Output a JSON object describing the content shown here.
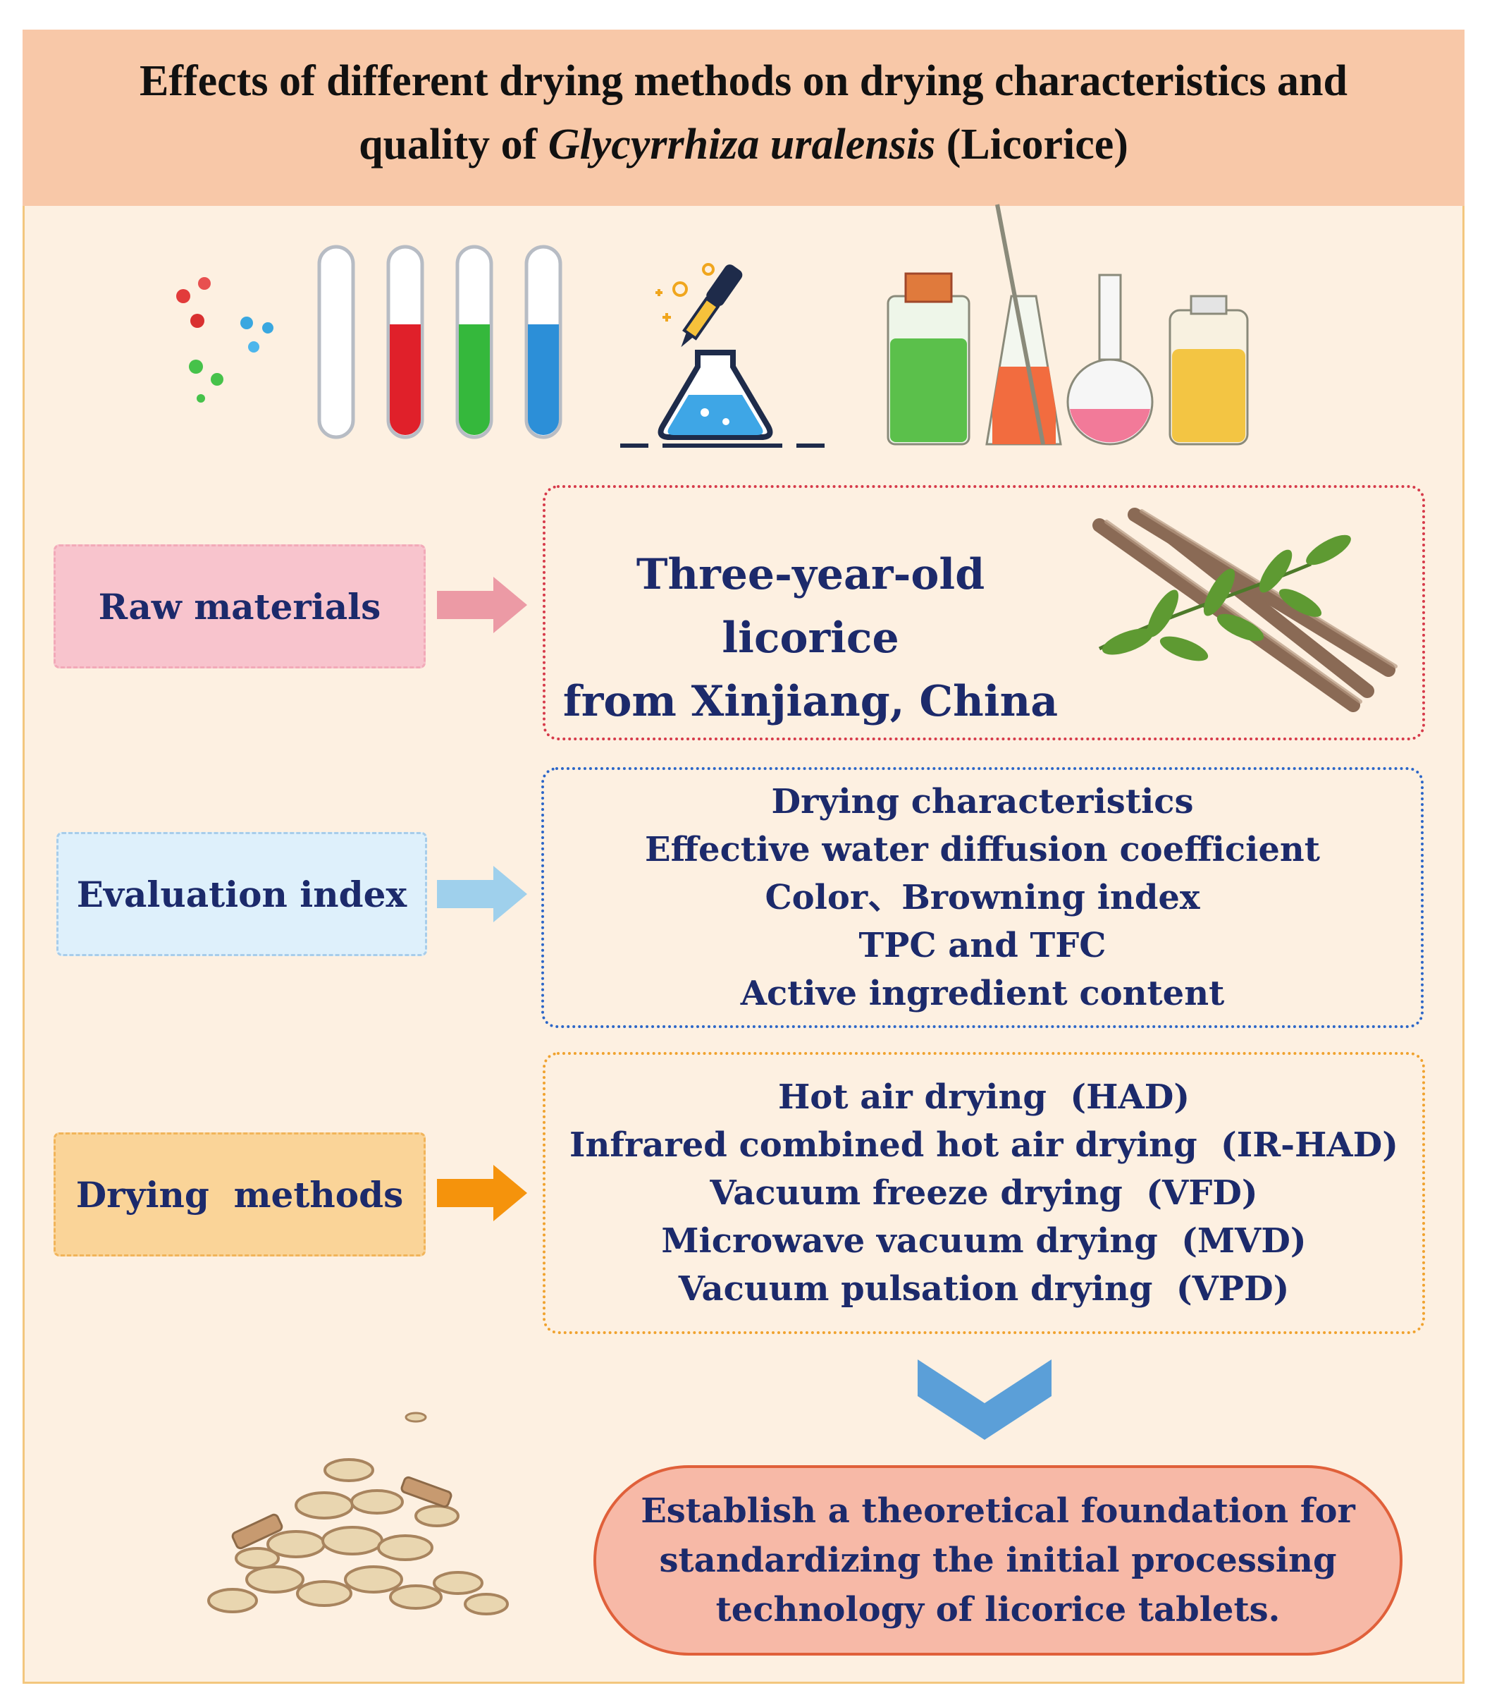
{
  "header": {
    "title_line1": "Effects of different drying methods on drying characteristics and",
    "title_line2_prefix": "quality of ",
    "title_line2_italic": "Glycyrrhiza uralensis",
    "title_line2_suffix": " (Licorice)"
  },
  "rows": {
    "raw": {
      "label": "Raw materials",
      "content_line1": "Three-year-old licorice",
      "content_line2": "from Xinjiang, China"
    },
    "evaluation": {
      "label": "Evaluation index",
      "items": [
        "Drying characteristics",
        "Effective water diffusion coefficient",
        "Color、Browning index",
        "TPC and TFC",
        "Active ingredient content"
      ]
    },
    "drying": {
      "label": "Drying  methods",
      "items": [
        "Hot air drying  (HAD)",
        "Infrared combined hot air drying  (IR-HAD)",
        "Vacuum freeze drying  (VFD)",
        "Microwave vacuum drying  (MVD)",
        "Vacuum pulsation drying  (VPD)"
      ]
    }
  },
  "result": {
    "line1": "Establish a theoretical foundation for",
    "line2": "standardizing the initial processing",
    "line3": "technology of licorice tablets."
  },
  "colors": {
    "title_bg": "#f8c8a8",
    "page_bg": "#fdf0e1",
    "text_navy": "#1c2a6b",
    "raw_arrow": "#ec9aa5",
    "eval_arrow": "#9fd0ec",
    "dry_arrow": "#f5930c",
    "down_chevron": "#5b9fd8"
  },
  "icons": [
    "molecule-dots-icon",
    "test-tube-icon",
    "dropper-flask-icon",
    "lab-bottles-icon",
    "licorice-root-icon",
    "licorice-slices-icon"
  ]
}
